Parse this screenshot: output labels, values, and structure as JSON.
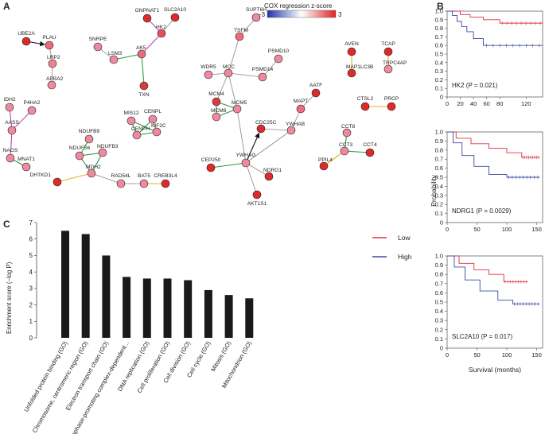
{
  "panel_labels": {
    "a": "A",
    "b": "B",
    "c": "C"
  },
  "network": {
    "colorbar": {
      "title": "COX regression z-score",
      "min_label": "−3",
      "max_label": "3"
    },
    "nodes": [
      {
        "id": "UBE2A",
        "shade": "#dd2a2a"
      },
      {
        "id": "PLAU",
        "shade": "#ee6a7a"
      },
      {
        "id": "LRP2",
        "shade": "#f0808e"
      },
      {
        "id": "APBA2",
        "shade": "#f089a0"
      },
      {
        "id": "GNPNAT1",
        "shade": "#dd2a2a"
      },
      {
        "id": "SLC2A10",
        "shade": "#dd2a2a"
      },
      {
        "id": "HK2",
        "shade": "#e85060"
      },
      {
        "id": "SNRPE",
        "shade": "#f089a0"
      },
      {
        "id": "LSM3",
        "shade": "#f089a0"
      },
      {
        "id": "AK5",
        "shade": "#ee6a7a"
      },
      {
        "id": "TXN",
        "shade": "#dd3a40"
      },
      {
        "id": "SUPT6H",
        "shade": "#f089a0"
      },
      {
        "id": "TSFM",
        "shade": "#ee6a7a"
      },
      {
        "id": "WDR5",
        "shade": "#f089a0"
      },
      {
        "id": "MCC",
        "shade": "#f089a0"
      },
      {
        "id": "PSMD10",
        "shade": "#f089a0"
      },
      {
        "id": "PSMD14",
        "shade": "#f089a0"
      },
      {
        "id": "AVEN",
        "shade": "#dd2a2a"
      },
      {
        "id": "MAP1LC3B",
        "shade": "#dd2a2a"
      },
      {
        "id": "TCAP",
        "shade": "#dd2a2a"
      },
      {
        "id": "TRPC4AP",
        "shade": "#f089a0"
      },
      {
        "id": "IDH2",
        "shade": "#f089a0"
      },
      {
        "id": "P4HA2",
        "shade": "#f089a0"
      },
      {
        "id": "AASS",
        "shade": "#f089a0"
      },
      {
        "id": "NAGS",
        "shade": "#f089a0"
      },
      {
        "id": "MNAT1",
        "shade": "#f089a0"
      },
      {
        "id": "MCM4",
        "shade": "#dd3a40"
      },
      {
        "id": "MCM5",
        "shade": "#f089a0"
      },
      {
        "id": "MCM8",
        "shade": "#f089a0"
      },
      {
        "id": "AATF",
        "shade": "#dd2a2a"
      },
      {
        "id": "MAPT",
        "shade": "#ee6a7a"
      },
      {
        "id": "CTSL2",
        "shade": "#dd2a2a"
      },
      {
        "id": "PRCP",
        "shade": "#dd2a2a"
      },
      {
        "id": "MIS12",
        "shade": "#f089a0"
      },
      {
        "id": "CENPL",
        "shade": "#f089a0"
      },
      {
        "id": "CENPH",
        "shade": "#f089a0"
      },
      {
        "id": "KIF2C",
        "shade": "#f089a0"
      },
      {
        "id": "NDUFB9",
        "shade": "#f089a0"
      },
      {
        "id": "NDUFS6",
        "shade": "#f089a0"
      },
      {
        "id": "NDUFB3",
        "shade": "#f089a0"
      },
      {
        "id": "MDH2",
        "shade": "#f089a0"
      },
      {
        "id": "DHTKD1",
        "shade": "#dd2a2a"
      },
      {
        "id": "RAD54L",
        "shade": "#f089a0"
      },
      {
        "id": "BAT5",
        "shade": "#f089a0"
      },
      {
        "id": "CREB3L4",
        "shade": "#dd2a2a"
      },
      {
        "id": "CDC25C",
        "shade": "#dd2a2a"
      },
      {
        "id": "YWHAB",
        "shade": "#f089a0"
      },
      {
        "id": "YWHAG",
        "shade": "#f089a0"
      },
      {
        "id": "CEP250",
        "shade": "#dd2a2a"
      },
      {
        "id": "NDRG1",
        "shade": "#dd2a2a"
      },
      {
        "id": "AKT1S1",
        "shade": "#dd2a2a"
      },
      {
        "id": "CCT8",
        "shade": "#f089a0"
      },
      {
        "id": "CCT3",
        "shade": "#f089a0"
      },
      {
        "id": "CCT4",
        "shade": "#dd2a2a"
      },
      {
        "id": "PPIL4",
        "shade": "#dd2a2a"
      }
    ],
    "edges": [
      {
        "s": "UBE2A",
        "t": "PLAU",
        "kind": "arrow"
      },
      {
        "s": "PLAU",
        "t": "LRP2",
        "kind": "gray"
      },
      {
        "s": "LRP2",
        "t": "APBA2",
        "kind": "gray"
      },
      {
        "s": "GNPNAT1",
        "t": "HK2",
        "kind": "magenta"
      },
      {
        "s": "SLC2A10",
        "t": "HK2",
        "kind": "gray"
      },
      {
        "s": "HK2",
        "t": "AK5",
        "kind": "magenta"
      },
      {
        "s": "SNRPE",
        "t": "LSM3",
        "kind": "gray"
      },
      {
        "s": "LSM3",
        "t": "AK5",
        "kind": "green"
      },
      {
        "s": "AK5",
        "t": "TXN",
        "kind": "green"
      },
      {
        "s": "SUPT6H",
        "t": "TSFM",
        "kind": "gray"
      },
      {
        "s": "TSFM",
        "t": "MCC",
        "kind": "gray"
      },
      {
        "s": "WDR5",
        "t": "MCC",
        "kind": "gray"
      },
      {
        "s": "MCC",
        "t": "PSMD14",
        "kind": "gray"
      },
      {
        "s": "PSMD10",
        "t": "PSMD14",
        "kind": "gray"
      },
      {
        "s": "MCC",
        "t": "MCM4",
        "kind": "gray"
      },
      {
        "s": "MCC",
        "t": "MCM5",
        "kind": "gray"
      },
      {
        "s": "MCM4",
        "t": "MCM8",
        "kind": "green"
      },
      {
        "s": "MCM4",
        "t": "MCM5",
        "kind": "green"
      },
      {
        "s": "MCM8",
        "t": "MCM5",
        "kind": "green"
      },
      {
        "s": "MCM5",
        "t": "YWHAG",
        "kind": "gray"
      },
      {
        "s": "AVEN",
        "t": "MAP1LC3B",
        "kind": "yellow"
      },
      {
        "s": "TCAP",
        "t": "TRPC4AP",
        "kind": "yellow"
      },
      {
        "s": "IDH2",
        "t": "AASS",
        "kind": "magenta"
      },
      {
        "s": "P4HA2",
        "t": "AASS",
        "kind": "magenta"
      },
      {
        "s": "AASS",
        "t": "NAGS",
        "kind": "magenta"
      },
      {
        "s": "NAGS",
        "t": "MNAT1",
        "kind": "green"
      },
      {
        "s": "AATF",
        "t": "MAPT",
        "kind": "gray"
      },
      {
        "s": "MAPT",
        "t": "YWHAB",
        "kind": "gray"
      },
      {
        "s": "YWHAB",
        "t": "CDC25C",
        "kind": "gray"
      },
      {
        "s": "YWHAB",
        "t": "YWHAG",
        "kind": "gray"
      },
      {
        "s": "YWHAG",
        "t": "CDC25C",
        "kind": "arrow"
      },
      {
        "s": "CTSL2",
        "t": "PRCP",
        "kind": "yellow"
      },
      {
        "s": "MIS12",
        "t": "CENPH",
        "kind": "green"
      },
      {
        "s": "MIS12",
        "t": "KIF2C",
        "kind": "green"
      },
      {
        "s": "CENPL",
        "t": "CENPH",
        "kind": "green"
      },
      {
        "s": "CENPL",
        "t": "KIF2C",
        "kind": "green"
      },
      {
        "s": "CENPH",
        "t": "KIF2C",
        "kind": "green"
      },
      {
        "s": "NDUFB9",
        "t": "NDUFS6",
        "kind": "green"
      },
      {
        "s": "NDUFS6",
        "t": "NDUFB3",
        "kind": "green"
      },
      {
        "s": "NDUFS6",
        "t": "MDH2",
        "kind": "green"
      },
      {
        "s": "NDUFB3",
        "t": "MDH2",
        "kind": "green"
      },
      {
        "s": "MDH2",
        "t": "DHTKD1",
        "kind": "yellow"
      },
      {
        "s": "MDH2",
        "t": "RAD54L",
        "kind": "gray"
      },
      {
        "s": "RAD54L",
        "t": "BAT5",
        "kind": "gray"
      },
      {
        "s": "BAT5",
        "t": "CREB3L4",
        "kind": "yellow"
      },
      {
        "s": "CEP250",
        "t": "YWHAG",
        "kind": "green"
      },
      {
        "s": "NDRG1",
        "t": "YWHAG",
        "kind": "gray"
      },
      {
        "s": "YWHAG",
        "t": "AKT1S1",
        "kind": "gray"
      },
      {
        "s": "CCT8",
        "t": "CCT3",
        "kind": "green"
      },
      {
        "s": "CCT3",
        "t": "CCT4",
        "kind": "green"
      },
      {
        "s": "CCT3",
        "t": "PPIL4",
        "kind": "yellow"
      }
    ]
  },
  "survival_panels": {
    "ylabel": "Probability",
    "xlabel": "Survival (months)",
    "legend": [
      {
        "label": "Low",
        "color": "#dd3340"
      },
      {
        "label": "High",
        "color": "#3a4aa0"
      }
    ],
    "y_ticks": [
      "0",
      "0.1",
      "0.2",
      "0.3",
      "0.4",
      "0.5",
      "0.6",
      "0.7",
      "0.8",
      "0.9",
      "1.0"
    ],
    "panels": [
      {
        "gene": "HK2",
        "p_text": "(P = 0.021)",
        "xmax": 145,
        "x_ticks": [
          0,
          20,
          40,
          60,
          80,
          120
        ],
        "low": [
          [
            0,
            1
          ],
          [
            20,
            0.96
          ],
          [
            35,
            0.93
          ],
          [
            55,
            0.9
          ],
          [
            80,
            0.86
          ],
          [
            145,
            0.86
          ]
        ],
        "high": [
          [
            0,
            1
          ],
          [
            8,
            0.95
          ],
          [
            15,
            0.88
          ],
          [
            22,
            0.82
          ],
          [
            30,
            0.76
          ],
          [
            40,
            0.68
          ],
          [
            55,
            0.6
          ],
          [
            145,
            0.6
          ]
        ]
      },
      {
        "gene": "NDRG1",
        "p_text": "(P = 0.0029)",
        "xmax": 160,
        "x_ticks": [
          0,
          50,
          100,
          150
        ],
        "low": [
          [
            0,
            1
          ],
          [
            15,
            0.93
          ],
          [
            40,
            0.87
          ],
          [
            70,
            0.82
          ],
          [
            100,
            0.77
          ],
          [
            125,
            0.72
          ],
          [
            155,
            0.72
          ]
        ],
        "high": [
          [
            0,
            1
          ],
          [
            10,
            0.88
          ],
          [
            25,
            0.74
          ],
          [
            45,
            0.62
          ],
          [
            70,
            0.53
          ],
          [
            100,
            0.5
          ],
          [
            155,
            0.5
          ]
        ]
      },
      {
        "gene": "SLC2A10",
        "p_text": "(P = 0.017)",
        "xmax": 160,
        "x_ticks": [
          0,
          50,
          100,
          150
        ],
        "low": [
          [
            0,
            1
          ],
          [
            20,
            0.92
          ],
          [
            45,
            0.85
          ],
          [
            70,
            0.8
          ],
          [
            95,
            0.72
          ],
          [
            135,
            0.72
          ]
        ],
        "high": [
          [
            0,
            1
          ],
          [
            12,
            0.88
          ],
          [
            30,
            0.74
          ],
          [
            55,
            0.62
          ],
          [
            85,
            0.52
          ],
          [
            110,
            0.48
          ],
          [
            155,
            0.48
          ]
        ]
      }
    ]
  },
  "chart_data": {
    "type": "bar",
    "title": "",
    "xlabel": "",
    "ylabel": "Enrichment score (−log P)",
    "ylim": [
      0,
      7
    ],
    "y_ticks": [
      0,
      1,
      2,
      3,
      4,
      5,
      6,
      7
    ],
    "categories": [
      "Unfolded protein binding (GO)",
      "Chromosome, centromeric region (GO)",
      "Electron transport chain (GO)",
      "Anaphase-promoting complex-dependent...",
      "DNA replication (GO)",
      "Cell proliferation (GO)",
      "Cell division (GO)",
      "Cell cycle (GO)",
      "Mitosis (GO)",
      "Mitochondrion (GO)"
    ],
    "values": [
      6.5,
      6.3,
      5.0,
      3.7,
      3.6,
      3.6,
      3.5,
      2.9,
      2.6,
      2.4
    ]
  }
}
